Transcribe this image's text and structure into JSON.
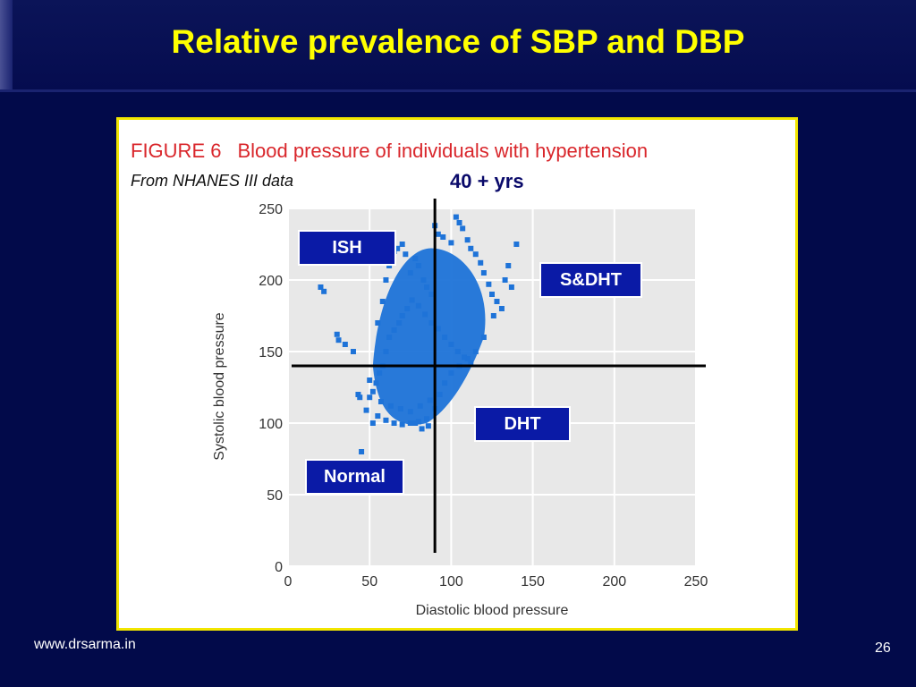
{
  "slide": {
    "title": "Relative prevalence of SBP and DBP",
    "footer_url": "www.drsarma.in",
    "page_number": "26",
    "colors": {
      "background": "#020a4a",
      "title": "#ffff00",
      "frame": "#f2e600",
      "label_box": "#0a1aa6",
      "points": "#1e73d8"
    }
  },
  "figure": {
    "number": "FIGURE 6",
    "caption": "Blood pressure of individuals with hypertension",
    "source": "From NHANES III data",
    "age_group": "40 + yrs"
  },
  "chart_data": {
    "type": "scatter",
    "title": "Blood pressure of individuals with hypertension",
    "xlabel": "Diastolic blood pressure",
    "ylabel": "Systolic blood pressure",
    "xlim": [
      0,
      250
    ],
    "ylim": [
      0,
      250
    ],
    "x_ticks": [
      "0",
      "50",
      "100",
      "150",
      "200",
      "250"
    ],
    "y_ticks": [
      "0",
      "50",
      "100",
      "150",
      "200",
      "250"
    ],
    "grid": true,
    "threshold_lines": {
      "diastolic": 90,
      "systolic": 140
    },
    "quadrant_labels": [
      "ISH",
      "S&DHT",
      "DHT",
      "Normal"
    ],
    "points": [
      [
        20,
        195
      ],
      [
        22,
        192
      ],
      [
        30,
        162
      ],
      [
        31,
        158
      ],
      [
        35,
        155
      ],
      [
        40,
        150
      ],
      [
        43,
        120
      ],
      [
        44,
        118
      ],
      [
        48,
        109
      ],
      [
        45,
        80
      ],
      [
        52,
        100
      ],
      [
        50,
        130
      ],
      [
        55,
        170
      ],
      [
        58,
        185
      ],
      [
        60,
        200
      ],
      [
        62,
        210
      ],
      [
        65,
        220
      ],
      [
        67,
        222
      ],
      [
        70,
        225
      ],
      [
        72,
        218
      ],
      [
        75,
        205
      ],
      [
        78,
        215
      ],
      [
        80,
        210
      ],
      [
        83,
        200
      ],
      [
        85,
        195
      ],
      [
        88,
        190
      ],
      [
        90,
        238
      ],
      [
        92,
        232
      ],
      [
        95,
        230
      ],
      [
        100,
        226
      ],
      [
        103,
        244
      ],
      [
        105,
        240
      ],
      [
        107,
        236
      ],
      [
        110,
        228
      ],
      [
        112,
        222
      ],
      [
        115,
        218
      ],
      [
        118,
        212
      ],
      [
        120,
        205
      ],
      [
        123,
        197
      ],
      [
        125,
        190
      ],
      [
        128,
        185
      ],
      [
        131,
        180
      ],
      [
        133,
        200
      ],
      [
        135,
        210
      ],
      [
        137,
        195
      ],
      [
        140,
        225
      ],
      [
        126,
        175
      ],
      [
        120,
        160
      ],
      [
        115,
        150
      ],
      [
        110,
        145
      ],
      [
        105,
        140
      ],
      [
        100,
        135
      ],
      [
        96,
        128
      ],
      [
        93,
        120
      ],
      [
        90,
        110
      ],
      [
        85,
        103
      ],
      [
        80,
        101
      ],
      [
        75,
        100
      ],
      [
        70,
        99
      ],
      [
        65,
        100
      ],
      [
        60,
        102
      ],
      [
        55,
        105
      ],
      [
        78,
        100
      ],
      [
        82,
        96
      ],
      [
        86,
        98
      ],
      [
        60,
        150
      ],
      [
        62,
        160
      ],
      [
        65,
        165
      ],
      [
        68,
        170
      ],
      [
        70,
        175
      ],
      [
        73,
        180
      ],
      [
        76,
        186
      ],
      [
        80,
        182
      ],
      [
        84,
        176
      ],
      [
        88,
        170
      ],
      [
        92,
        166
      ],
      [
        96,
        160
      ],
      [
        100,
        155
      ],
      [
        104,
        150
      ],
      [
        108,
        146
      ],
      [
        112,
        142
      ],
      [
        58,
        140
      ],
      [
        56,
        135
      ],
      [
        54,
        128
      ],
      [
        52,
        122
      ],
      [
        50,
        118
      ],
      [
        57,
        115
      ],
      [
        63,
        112
      ],
      [
        69,
        110
      ],
      [
        75,
        108
      ],
      [
        81,
        112
      ],
      [
        87,
        116
      ]
    ]
  }
}
